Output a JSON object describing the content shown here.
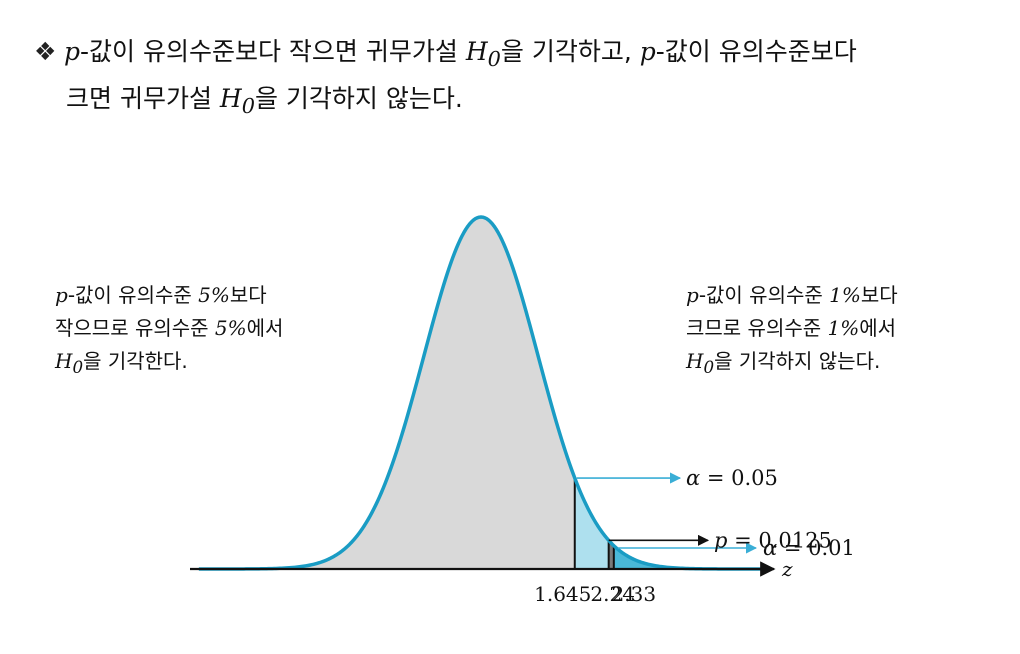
{
  "intro": {
    "bullet_symbol": "❖",
    "p": "p",
    "t1": "-값이 유의수준보다 작으면 귀무가설 ",
    "H": "H",
    "sub": "0",
    "t2": "을 기각하고, ",
    "p2": "p",
    "t3": "-값이 유의수준보다",
    "t4": "크면 귀무가설 ",
    "H2": "H",
    "sub2": "0",
    "t5": "을 기각하지 않는다."
  },
  "left_note": {
    "p": "p",
    "l1": "-값이 유의수준 ",
    "pct": "5%",
    "l1b": "보다",
    "l2": "작으므로 유의수준 ",
    "pct2": "5%",
    "l2b": "에서",
    "H": "H",
    "sub": "0",
    "l3": "을 기각한다."
  },
  "right_note": {
    "p": "p",
    "l1": "-값이 유의수준 ",
    "pct": "1%",
    "l1b": "보다",
    "l2": "크므로 유의수준 ",
    "pct2": "1%",
    "l2b": "에서",
    "H": "H",
    "sub": "0",
    "l3": "을 기각하지 않는다."
  },
  "chart_data": {
    "type": "area",
    "curve": "standard normal density",
    "x_axis_label": "z",
    "ticks": [
      {
        "value": 1.645,
        "label": "1.645"
      },
      {
        "value": 2.24,
        "label": "2.24"
      },
      {
        "value": 2.33,
        "label": "2.33"
      }
    ],
    "annotations": [
      {
        "symbol": "α",
        "text": " = 0.05",
        "from_z": 1.645
      },
      {
        "symbol": "p",
        "text": " = 0.0125",
        "from_z": 2.24
      },
      {
        "symbol": "α",
        "text": " = 0.01",
        "from_z": 2.33
      }
    ],
    "colors": {
      "curve": "#1a9cc4",
      "body_fill": "#d9d9d9",
      "alpha05_region": "#aee0ee",
      "pvalue_region": "#7a7a7a",
      "alpha01_region": "#4ab8d8",
      "arrow_cyan": "#3aaed6",
      "arrow_black": "#111111"
    }
  }
}
